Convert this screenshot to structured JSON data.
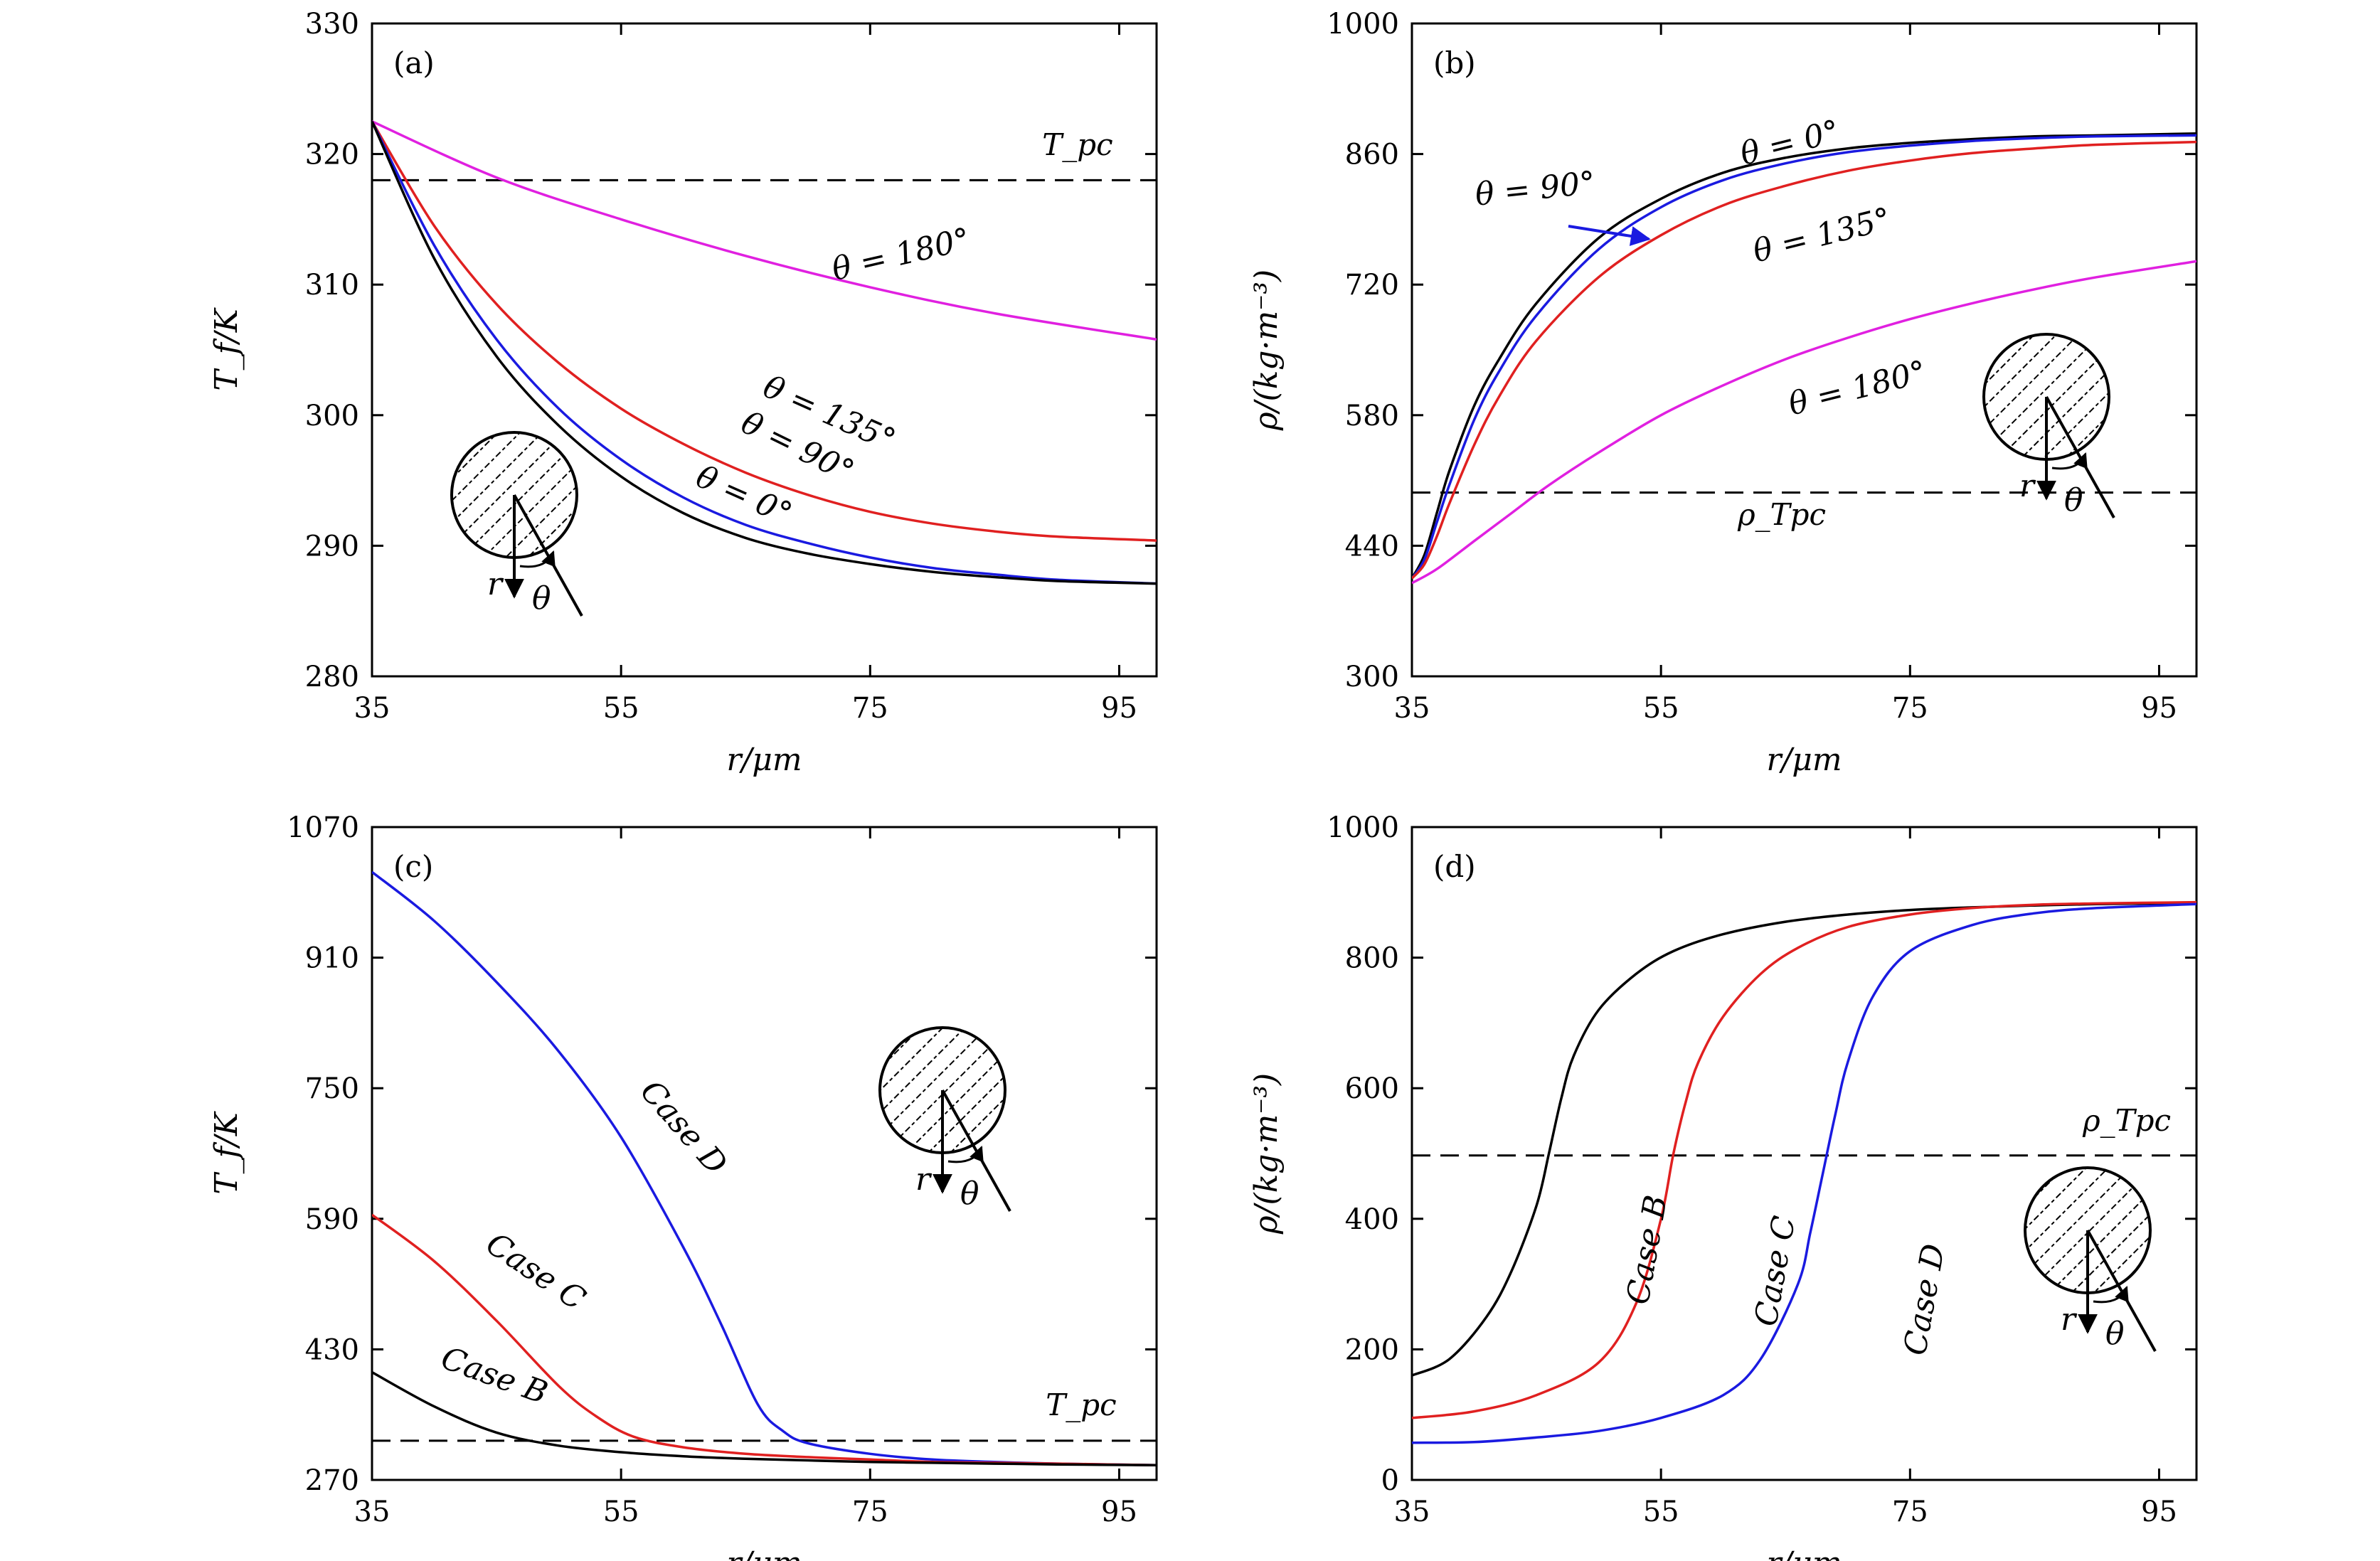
{
  "chart_data": [
    {
      "type": "line",
      "panel_label": "(a)",
      "xlabel": "r/μm",
      "ylabel": "T_f/K",
      "xlim": [
        35,
        98
      ],
      "ylim": [
        280,
        330
      ],
      "xticks": [
        35,
        55,
        75,
        95
      ],
      "yticks": [
        280,
        290,
        300,
        310,
        320,
        330
      ],
      "reference_line": {
        "y": 318,
        "label": "T_pc"
      },
      "series": [
        {
          "name": "θ = 180°",
          "color": "#e020e0",
          "x": [
            35,
            45,
            55,
            65,
            75,
            85,
            98
          ],
          "y": [
            322.5,
            318.2,
            315.0,
            312.2,
            309.8,
            307.8,
            305.8
          ]
        },
        {
          "name": "θ = 135°",
          "color": "#e02020",
          "x": [
            35,
            40,
            45,
            50,
            55,
            60,
            65,
            70,
            75,
            80,
            85,
            90,
            98
          ],
          "y": [
            322.5,
            314.5,
            308.5,
            304.0,
            300.5,
            297.8,
            295.6,
            293.9,
            292.6,
            291.7,
            291.1,
            290.7,
            290.4
          ]
        },
        {
          "name": "θ = 90°",
          "color": "#1a1ae0",
          "x": [
            35,
            40,
            45,
            50,
            55,
            60,
            65,
            70,
            75,
            80,
            85,
            90,
            98
          ],
          "y": [
            322.5,
            313.0,
            305.8,
            300.5,
            296.6,
            293.7,
            291.6,
            290.2,
            289.1,
            288.3,
            287.8,
            287.4,
            287.1
          ]
        },
        {
          "name": "θ = 0°",
          "color": "#000000",
          "x": [
            35,
            40,
            45,
            50,
            55,
            60,
            65,
            70,
            75,
            80,
            85,
            90,
            98
          ],
          "y": [
            322.5,
            312.0,
            304.5,
            299.2,
            295.3,
            292.5,
            290.6,
            289.4,
            288.6,
            288.0,
            287.6,
            287.3,
            287.1
          ]
        }
      ],
      "annotations": [
        "θ = 180°",
        "θ = 135°",
        "θ = 90°",
        "θ = 0°"
      ],
      "inset_labels": {
        "r": "r",
        "theta": "θ"
      }
    },
    {
      "type": "line",
      "panel_label": "(b)",
      "xlabel": "r/μm",
      "ylabel": "ρ/(kg·m⁻³)",
      "xlim": [
        35,
        98
      ],
      "ylim": [
        300,
        1000
      ],
      "xticks": [
        35,
        55,
        75,
        95
      ],
      "yticks": [
        300,
        440,
        580,
        720,
        860,
        1000
      ],
      "reference_line": {
        "y": 497,
        "label": "ρ_Tpc"
      },
      "series": [
        {
          "name": "θ = 0°",
          "color": "#000000",
          "x": [
            35,
            36,
            37,
            38,
            40,
            42,
            45,
            50,
            55,
            60,
            65,
            70,
            75,
            80,
            85,
            90,
            98
          ],
          "y": [
            405,
            430,
            475,
            520,
            590,
            640,
            700,
            770,
            812,
            840,
            856,
            866,
            872,
            876,
            879,
            880,
            882
          ]
        },
        {
          "name": "θ = 90°",
          "color": "#1a1ae0",
          "x": [
            35,
            36,
            37,
            38,
            40,
            42,
            45,
            50,
            55,
            60,
            65,
            70,
            75,
            80,
            85,
            90,
            98
          ],
          "y": [
            405,
            425,
            465,
            505,
            575,
            627,
            687,
            758,
            803,
            832,
            850,
            862,
            869,
            874,
            877,
            879,
            880
          ]
        },
        {
          "name": "θ = 135°",
          "color": "#e02020",
          "x": [
            35,
            36,
            37,
            38,
            40,
            42,
            45,
            50,
            55,
            60,
            65,
            70,
            75,
            80,
            85,
            90,
            98
          ],
          "y": [
            405,
            420,
            450,
            485,
            548,
            600,
            660,
            728,
            773,
            805,
            826,
            842,
            853,
            861,
            866,
            870,
            873
          ]
        },
        {
          "name": "θ = 180°",
          "color": "#e020e0",
          "x": [
            35,
            37,
            40,
            43,
            46,
            50,
            55,
            60,
            65,
            70,
            75,
            80,
            85,
            90,
            98
          ],
          "y": [
            400,
            415,
            445,
            475,
            505,
            540,
            580,
            612,
            640,
            663,
            683,
            700,
            715,
            728,
            745
          ]
        }
      ],
      "annotations": [
        "θ = 0°",
        "θ = 90°",
        "θ = 135°",
        "θ = 180°"
      ],
      "inset_labels": {
        "r": "r",
        "theta": "θ"
      }
    },
    {
      "type": "line",
      "panel_label": "(c)",
      "xlabel": "r/μm",
      "ylabel": "T_f/K",
      "xlim": [
        35,
        98
      ],
      "ylim": [
        270,
        1070
      ],
      "xticks": [
        35,
        55,
        75,
        95
      ],
      "yticks": [
        270,
        430,
        590,
        750,
        910,
        1070
      ],
      "reference_line": {
        "y": 318,
        "label": "T_pc"
      },
      "series": [
        {
          "name": "Case D",
          "color": "#1a1ae0",
          "x": [
            35,
            40,
            45,
            50,
            55,
            60,
            63,
            66,
            68,
            70,
            75,
            80,
            85,
            90,
            98
          ],
          "y": [
            1015,
            955,
            880,
            795,
            690,
            555,
            462,
            362,
            330,
            315,
            302,
            295,
            292,
            290,
            288
          ]
        },
        {
          "name": "Case C",
          "color": "#e02020",
          "x": [
            35,
            40,
            45,
            50,
            53,
            56,
            60,
            65,
            70,
            75,
            80,
            85,
            90,
            98
          ],
          "y": [
            595,
            538,
            465,
            385,
            348,
            323,
            310,
            302,
            298,
            295,
            292,
            291,
            290,
            288
          ]
        },
        {
          "name": "Case B",
          "color": "#000000",
          "x": [
            35,
            40,
            45,
            50,
            55,
            60,
            65,
            70,
            75,
            80,
            85,
            90,
            98
          ],
          "y": [
            402,
            360,
            328,
            312,
            304,
            299,
            296,
            294,
            292,
            291,
            290,
            289,
            288
          ]
        }
      ],
      "annotations": [
        "Case D",
        "Case C",
        "Case B"
      ],
      "inset_labels": {
        "r": "r",
        "theta": "θ"
      }
    },
    {
      "type": "line",
      "panel_label": "(d)",
      "xlabel": "r/μm",
      "ylabel": "ρ/(kg·m⁻³)",
      "xlim": [
        35,
        98
      ],
      "ylim": [
        0,
        1000
      ],
      "xticks": [
        35,
        55,
        75,
        95
      ],
      "yticks": [
        0,
        200,
        400,
        600,
        800,
        1000
      ],
      "reference_line": {
        "y": 497,
        "label": "ρ_Tpc"
      },
      "series": [
        {
          "name": "Case B",
          "color": "#000000",
          "x": [
            35,
            38,
            41,
            43,
            45,
            46,
            47,
            48,
            50,
            53,
            56,
            60,
            65,
            70,
            75,
            80,
            85,
            90,
            98
          ],
          "y": [
            160,
            185,
            250,
            320,
            420,
            500,
            585,
            650,
            720,
            775,
            810,
            836,
            855,
            866,
            873,
            877,
            880,
            882,
            884
          ]
        },
        {
          "name": "Case C",
          "color": "#e02020",
          "x": [
            35,
            40,
            45,
            50,
            53,
            55,
            56,
            57,
            58,
            60,
            63,
            66,
            70,
            75,
            80,
            85,
            90,
            98
          ],
          "y": [
            95,
            105,
            130,
            180,
            270,
            400,
            500,
            580,
            640,
            710,
            775,
            815,
            847,
            866,
            876,
            881,
            883,
            885
          ]
        },
        {
          "name": "Case D",
          "color": "#1a1ae0",
          "x": [
            35,
            40,
            45,
            50,
            55,
            60,
            63,
            66,
            67,
            68,
            69,
            70,
            72,
            75,
            80,
            85,
            90,
            98
          ],
          "y": [
            57,
            58,
            65,
            75,
            95,
            130,
            185,
            300,
            380,
            470,
            560,
            640,
            740,
            810,
            850,
            868,
            876,
            882
          ]
        }
      ],
      "annotations": [
        "Case B",
        "Case C",
        "Case D"
      ],
      "inset_labels": {
        "r": "r",
        "theta": "θ"
      }
    }
  ]
}
